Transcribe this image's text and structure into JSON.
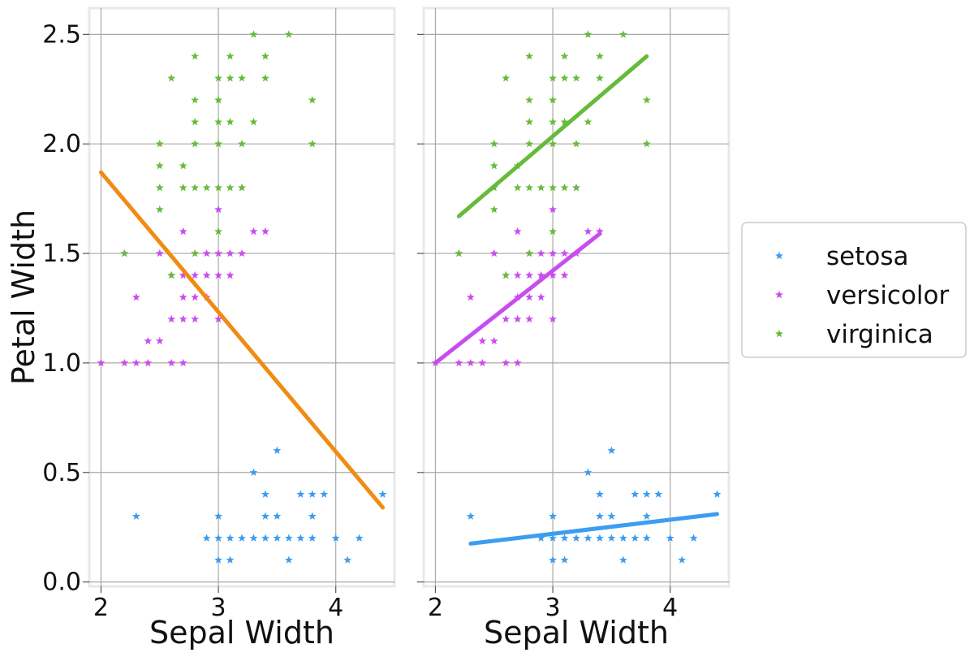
{
  "chart_data": [
    {
      "type": "scatter",
      "xlabel": "Sepal Width",
      "ylabel": "Petal Width",
      "xlim": [
        1.9,
        4.5
      ],
      "ylim": [
        -0.02,
        2.62
      ],
      "xticks": [
        2,
        3,
        4
      ],
      "xtick_labels": [
        "2",
        "3",
        "4"
      ],
      "yticks": [
        0.0,
        0.5,
        1.0,
        1.5,
        2.0,
        2.5
      ],
      "ytick_labels": [
        "0.0",
        "0.5",
        "1.0",
        "1.5",
        "2.0",
        "2.5"
      ],
      "grid": true,
      "series": [
        {
          "name": "setosa",
          "color": "#3d9df0",
          "marker": "star",
          "points": [
            [
              2.3,
              0.3
            ],
            [
              2.9,
              0.2
            ],
            [
              3.0,
              0.1
            ],
            [
              3.0,
              0.2
            ],
            [
              3.0,
              0.3
            ],
            [
              3.1,
              0.1
            ],
            [
              3.1,
              0.2
            ],
            [
              3.2,
              0.2
            ],
            [
              3.3,
              0.2
            ],
            [
              3.3,
              0.5
            ],
            [
              3.4,
              0.2
            ],
            [
              3.4,
              0.3
            ],
            [
              3.4,
              0.4
            ],
            [
              3.5,
              0.2
            ],
            [
              3.5,
              0.3
            ],
            [
              3.5,
              0.6
            ],
            [
              3.6,
              0.1
            ],
            [
              3.6,
              0.2
            ],
            [
              3.7,
              0.2
            ],
            [
              3.7,
              0.4
            ],
            [
              3.8,
              0.2
            ],
            [
              3.8,
              0.3
            ],
            [
              3.8,
              0.4
            ],
            [
              3.9,
              0.4
            ],
            [
              4.0,
              0.2
            ],
            [
              4.1,
              0.1
            ],
            [
              4.2,
              0.2
            ],
            [
              4.4,
              0.4
            ]
          ]
        },
        {
          "name": "versicolor",
          "color": "#c94cf0",
          "marker": "star",
          "points": [
            [
              2.0,
              1.0
            ],
            [
              2.2,
              1.0
            ],
            [
              2.2,
              1.5
            ],
            [
              2.3,
              1.0
            ],
            [
              2.3,
              1.3
            ],
            [
              2.4,
              1.0
            ],
            [
              2.4,
              1.1
            ],
            [
              2.5,
              1.1
            ],
            [
              2.5,
              1.5
            ],
            [
              2.6,
              1.0
            ],
            [
              2.6,
              1.2
            ],
            [
              2.6,
              1.4
            ],
            [
              2.7,
              1.0
            ],
            [
              2.7,
              1.2
            ],
            [
              2.7,
              1.3
            ],
            [
              2.7,
              1.4
            ],
            [
              2.7,
              1.6
            ],
            [
              2.8,
              1.2
            ],
            [
              2.8,
              1.3
            ],
            [
              2.8,
              1.4
            ],
            [
              2.8,
              1.5
            ],
            [
              2.9,
              1.3
            ],
            [
              2.9,
              1.4
            ],
            [
              2.9,
              1.5
            ],
            [
              3.0,
              1.2
            ],
            [
              3.0,
              1.4
            ],
            [
              3.0,
              1.5
            ],
            [
              3.0,
              1.7
            ],
            [
              3.1,
              1.4
            ],
            [
              3.1,
              1.5
            ],
            [
              3.2,
              1.5
            ],
            [
              3.2,
              1.8
            ],
            [
              3.3,
              1.6
            ],
            [
              3.4,
              1.6
            ]
          ]
        },
        {
          "name": "virginica",
          "color": "#66bb3a",
          "marker": "star",
          "points": [
            [
              2.2,
              1.5
            ],
            [
              2.5,
              1.7
            ],
            [
              2.5,
              1.8
            ],
            [
              2.5,
              1.9
            ],
            [
              2.5,
              2.0
            ],
            [
              2.6,
              1.4
            ],
            [
              2.6,
              2.3
            ],
            [
              2.7,
              1.8
            ],
            [
              2.7,
              1.9
            ],
            [
              2.8,
              1.5
            ],
            [
              2.8,
              1.8
            ],
            [
              2.8,
              2.0
            ],
            [
              2.8,
              2.1
            ],
            [
              2.8,
              2.2
            ],
            [
              2.8,
              2.4
            ],
            [
              2.9,
              1.8
            ],
            [
              3.0,
              1.6
            ],
            [
              3.0,
              1.8
            ],
            [
              3.0,
              2.0
            ],
            [
              3.0,
              2.1
            ],
            [
              3.0,
              2.2
            ],
            [
              3.0,
              2.3
            ],
            [
              3.1,
              1.8
            ],
            [
              3.1,
              2.1
            ],
            [
              3.1,
              2.3
            ],
            [
              3.1,
              2.4
            ],
            [
              3.2,
              1.8
            ],
            [
              3.2,
              2.0
            ],
            [
              3.2,
              2.3
            ],
            [
              3.3,
              2.1
            ],
            [
              3.3,
              2.5
            ],
            [
              3.4,
              2.3
            ],
            [
              3.4,
              2.4
            ],
            [
              3.6,
              2.5
            ],
            [
              3.8,
              2.0
            ],
            [
              3.8,
              2.2
            ]
          ]
        }
      ],
      "regression_lines": [
        {
          "color": "#f08c14",
          "x": [
            2.0,
            4.4
          ],
          "y": [
            1.87,
            0.34
          ]
        }
      ]
    },
    {
      "type": "scatter",
      "xlabel": "Sepal Width",
      "ylabel": "",
      "xlim": [
        1.9,
        4.5
      ],
      "ylim": [
        -0.02,
        2.62
      ],
      "xticks": [
        2,
        3,
        4
      ],
      "xtick_labels": [
        "2",
        "3",
        "4"
      ],
      "yticks": [
        0.0,
        0.5,
        1.0,
        1.5,
        2.0,
        2.5
      ],
      "ytick_labels": [],
      "grid": true,
      "series": [
        {
          "name": "setosa",
          "color": "#3d9df0",
          "marker": "star",
          "points": [
            [
              2.3,
              0.3
            ],
            [
              2.9,
              0.2
            ],
            [
              3.0,
              0.1
            ],
            [
              3.0,
              0.2
            ],
            [
              3.0,
              0.3
            ],
            [
              3.1,
              0.1
            ],
            [
              3.1,
              0.2
            ],
            [
              3.2,
              0.2
            ],
            [
              3.3,
              0.2
            ],
            [
              3.3,
              0.5
            ],
            [
              3.4,
              0.2
            ],
            [
              3.4,
              0.3
            ],
            [
              3.4,
              0.4
            ],
            [
              3.5,
              0.2
            ],
            [
              3.5,
              0.3
            ],
            [
              3.5,
              0.6
            ],
            [
              3.6,
              0.1
            ],
            [
              3.6,
              0.2
            ],
            [
              3.7,
              0.2
            ],
            [
              3.7,
              0.4
            ],
            [
              3.8,
              0.2
            ],
            [
              3.8,
              0.3
            ],
            [
              3.8,
              0.4
            ],
            [
              3.9,
              0.4
            ],
            [
              4.0,
              0.2
            ],
            [
              4.1,
              0.1
            ],
            [
              4.2,
              0.2
            ],
            [
              4.4,
              0.4
            ]
          ]
        },
        {
          "name": "versicolor",
          "color": "#c94cf0",
          "marker": "star",
          "points": [
            [
              2.0,
              1.0
            ],
            [
              2.2,
              1.0
            ],
            [
              2.2,
              1.5
            ],
            [
              2.3,
              1.0
            ],
            [
              2.3,
              1.3
            ],
            [
              2.4,
              1.0
            ],
            [
              2.4,
              1.1
            ],
            [
              2.5,
              1.1
            ],
            [
              2.5,
              1.5
            ],
            [
              2.6,
              1.0
            ],
            [
              2.6,
              1.2
            ],
            [
              2.6,
              1.4
            ],
            [
              2.7,
              1.0
            ],
            [
              2.7,
              1.2
            ],
            [
              2.7,
              1.3
            ],
            [
              2.7,
              1.4
            ],
            [
              2.7,
              1.6
            ],
            [
              2.8,
              1.2
            ],
            [
              2.8,
              1.3
            ],
            [
              2.8,
              1.4
            ],
            [
              2.8,
              1.5
            ],
            [
              2.9,
              1.3
            ],
            [
              2.9,
              1.4
            ],
            [
              2.9,
              1.5
            ],
            [
              3.0,
              1.2
            ],
            [
              3.0,
              1.4
            ],
            [
              3.0,
              1.5
            ],
            [
              3.0,
              1.7
            ],
            [
              3.1,
              1.4
            ],
            [
              3.1,
              1.5
            ],
            [
              3.2,
              1.5
            ],
            [
              3.2,
              1.8
            ],
            [
              3.3,
              1.6
            ],
            [
              3.4,
              1.6
            ]
          ]
        },
        {
          "name": "virginica",
          "color": "#66bb3a",
          "marker": "star",
          "points": [
            [
              2.2,
              1.5
            ],
            [
              2.5,
              1.7
            ],
            [
              2.5,
              1.8
            ],
            [
              2.5,
              1.9
            ],
            [
              2.5,
              2.0
            ],
            [
              2.6,
              1.4
            ],
            [
              2.6,
              2.3
            ],
            [
              2.7,
              1.8
            ],
            [
              2.7,
              1.9
            ],
            [
              2.8,
              1.5
            ],
            [
              2.8,
              1.8
            ],
            [
              2.8,
              2.0
            ],
            [
              2.8,
              2.1
            ],
            [
              2.8,
              2.2
            ],
            [
              2.8,
              2.4
            ],
            [
              2.9,
              1.8
            ],
            [
              3.0,
              1.6
            ],
            [
              3.0,
              1.8
            ],
            [
              3.0,
              2.0
            ],
            [
              3.0,
              2.1
            ],
            [
              3.0,
              2.2
            ],
            [
              3.0,
              2.3
            ],
            [
              3.1,
              1.8
            ],
            [
              3.1,
              2.1
            ],
            [
              3.1,
              2.3
            ],
            [
              3.1,
              2.4
            ],
            [
              3.2,
              1.8
            ],
            [
              3.2,
              2.0
            ],
            [
              3.2,
              2.3
            ],
            [
              3.3,
              2.1
            ],
            [
              3.3,
              2.5
            ],
            [
              3.4,
              2.3
            ],
            [
              3.4,
              2.4
            ],
            [
              3.6,
              2.5
            ],
            [
              3.8,
              2.0
            ],
            [
              3.8,
              2.2
            ]
          ]
        }
      ],
      "regression_lines": [
        {
          "color": "#3d9df0",
          "x": [
            2.3,
            4.4
          ],
          "y": [
            0.175,
            0.31
          ]
        },
        {
          "color": "#c94cf0",
          "x": [
            2.0,
            3.4
          ],
          "y": [
            1.0,
            1.59
          ]
        },
        {
          "color": "#66bb3a",
          "x": [
            2.2,
            3.8
          ],
          "y": [
            1.67,
            2.4
          ]
        }
      ]
    }
  ],
  "legend": {
    "placement": "right",
    "entries": [
      {
        "label": "setosa",
        "color": "#3d9df0"
      },
      {
        "label": "versicolor",
        "color": "#c94cf0"
      },
      {
        "label": "virginica",
        "color": "#66bb3a"
      }
    ]
  }
}
